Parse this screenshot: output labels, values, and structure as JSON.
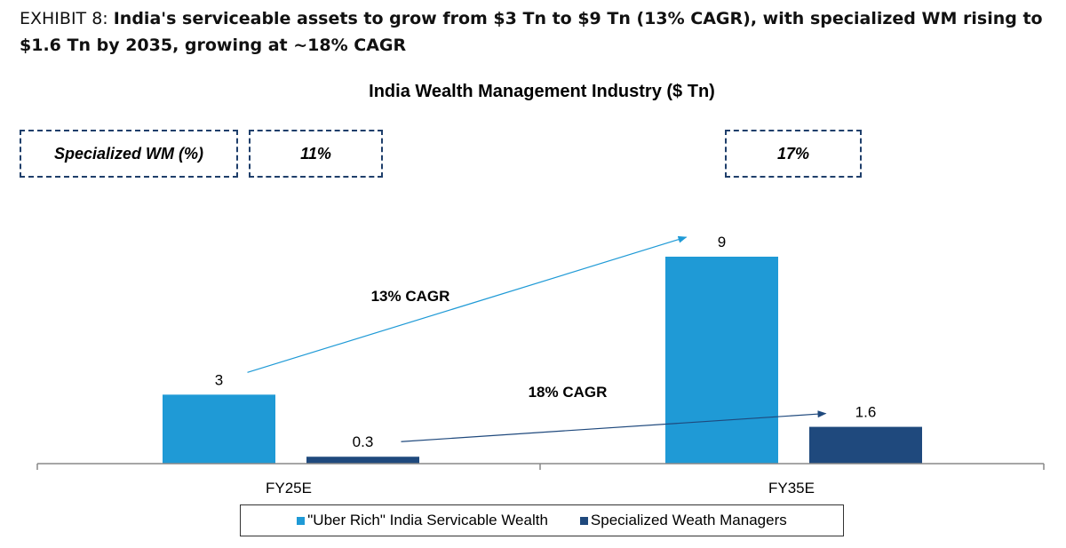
{
  "header": {
    "exhibit_label": "EXHIBIT 8: ",
    "exhibit_title": "India's serviceable assets to grow from $3 Tn to $9 Tn (13% CAGR), with specialized WM rising to $1.6 Tn by 2035, growing at ~18% CAGR"
  },
  "boxes": {
    "row_label": "Specialized WM (%)",
    "fy25": "11%",
    "fy35": "17%"
  },
  "colors": {
    "series_light": "#1f9ad6",
    "series_dark": "#1f497d",
    "box_border": "#1f3f6b"
  },
  "chart_data": {
    "type": "bar",
    "title": "India Wealth Management Industry ($ Tn)",
    "categories": [
      "FY25E",
      "FY35E"
    ],
    "series": [
      {
        "name": "\"Uber Rich\" India Servicable Wealth",
        "values": [
          3,
          9
        ],
        "labels": [
          "3",
          "9"
        ]
      },
      {
        "name": "Specialized Weath Managers",
        "values": [
          0.3,
          1.6
        ],
        "labels": [
          "0.3",
          "1.6"
        ]
      }
    ],
    "annotations": [
      {
        "text": "13% CAGR",
        "series": 0
      },
      {
        "text": "18% CAGR",
        "series": 1
      }
    ],
    "ylim": [
      0,
      10.7
    ],
    "grid": false,
    "legend": "bottom"
  }
}
